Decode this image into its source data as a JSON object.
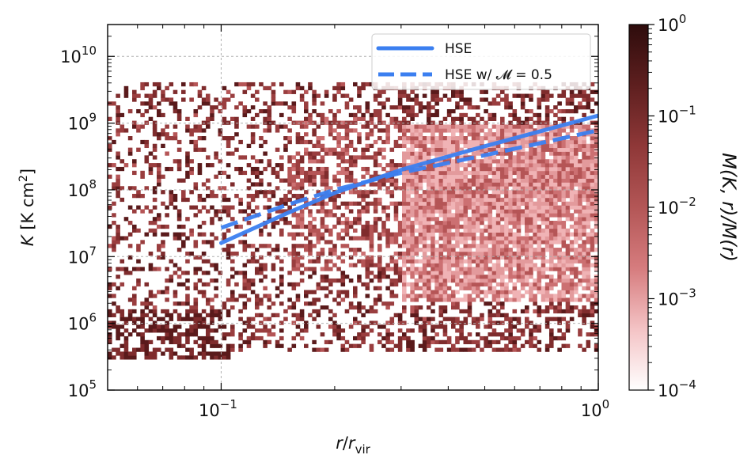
{
  "chart_data": {
    "type": "heatmap",
    "xlabel": "r/r_vir",
    "ylabel": "K [K cm^2]",
    "xscale": "log",
    "yscale": "log",
    "xlim": [
      0.05,
      1.0
    ],
    "ylim": [
      100000,
      30000000000
    ],
    "x_ticks": [
      {
        "base": "10",
        "exp": "−1"
      },
      {
        "base": "10",
        "exp": "0"
      }
    ],
    "y_ticks": [
      {
        "base": "10",
        "exp": "5"
      },
      {
        "base": "10",
        "exp": "6"
      },
      {
        "base": "10",
        "exp": "7"
      },
      {
        "base": "10",
        "exp": "8"
      },
      {
        "base": "10",
        "exp": "9"
      },
      {
        "base": "10",
        "exp": "10"
      }
    ],
    "grid": true,
    "colorbar": {
      "label": "M(K, r)/M(r)",
      "scale": "log",
      "range": [
        0.0001,
        1.0
      ],
      "ticks": [
        {
          "base": "10",
          "exp": "−4"
        },
        {
          "base": "10",
          "exp": "−3"
        },
        {
          "base": "10",
          "exp": "−2"
        },
        {
          "base": "10",
          "exp": "−1"
        },
        {
          "base": "10",
          "exp": "0"
        }
      ],
      "colors": [
        "#ffffff",
        "#f4c3c5",
        "#d67c7e",
        "#b35656",
        "#8f3838",
        "#5e1f1f",
        "#2e0c0c"
      ]
    },
    "density_description": {
      "inner_blob": {
        "x_range": [
          0.05,
          0.1
        ],
        "K_range": [
          300000,
          1500000
        ]
      },
      "scatter_region": {
        "x_range": [
          0.05,
          1.0
        ],
        "K_range": [
          400000,
          5000000000
        ]
      },
      "dense_region": {
        "x_range": [
          0.3,
          1.0
        ],
        "K_range": [
          2000000,
          1000000000
        ]
      }
    },
    "series": [
      {
        "name": "HSE",
        "style": "solid",
        "color": "#3b7ff0",
        "x": [
          0.1,
          0.15,
          0.2,
          0.3,
          0.5,
          0.7,
          1.0
        ],
        "y": [
          16000000,
          45000000,
          90000000,
          200000000,
          450000000,
          750000000,
          1300000000
        ]
      },
      {
        "name": "HSE w/ 𝓜 = 0.5",
        "style": "dashed",
        "color": "#3b7ff0",
        "x": [
          0.1,
          0.15,
          0.2,
          0.3,
          0.5,
          0.7,
          1.0
        ],
        "y": [
          27000000,
          60000000,
          100000000,
          180000000,
          330000000,
          500000000,
          780000000
        ]
      }
    ],
    "legend_position": "top-right"
  }
}
